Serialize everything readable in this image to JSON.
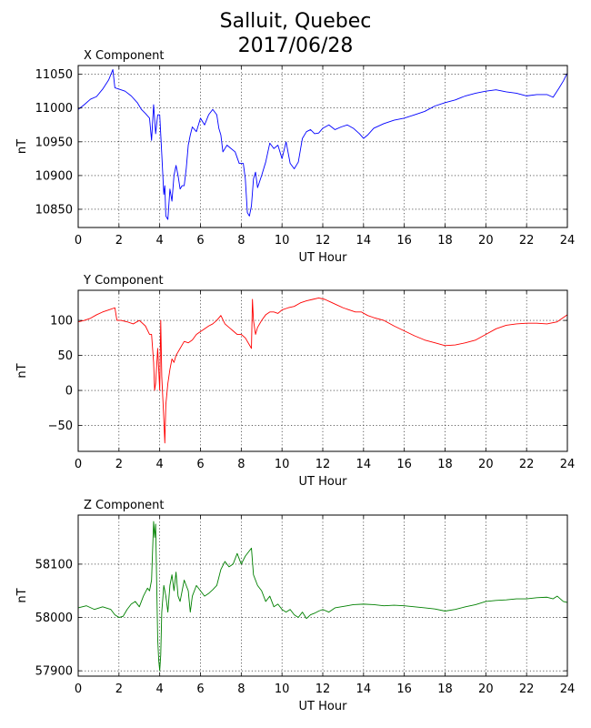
{
  "figure": {
    "title_line1": "Salluit, Quebec",
    "title_line2": "2017/06/28"
  },
  "chart_data": [
    {
      "type": "line",
      "title": "X Component",
      "xlabel": "UT Hour",
      "ylabel": "nT",
      "xlim": [
        0,
        24
      ],
      "ylim": [
        10823,
        11063
      ],
      "xticks": [
        0,
        2,
        4,
        6,
        8,
        10,
        12,
        14,
        16,
        18,
        20,
        22,
        24
      ],
      "yticks": [
        10850,
        10900,
        10950,
        11000,
        11050
      ],
      "grid": true,
      "series": [
        {
          "color": "#0000ff",
          "x": [
            0,
            0.3,
            0.6,
            0.9,
            1.2,
            1.5,
            1.7,
            1.8,
            2.0,
            2.3,
            2.6,
            2.9,
            3.1,
            3.3,
            3.5,
            3.6,
            3.7,
            3.8,
            3.9,
            4.0,
            4.1,
            4.2,
            4.25,
            4.3,
            4.4,
            4.5,
            4.6,
            4.7,
            4.8,
            4.9,
            5.0,
            5.1,
            5.2,
            5.3,
            5.4,
            5.5,
            5.6,
            5.8,
            6.0,
            6.2,
            6.4,
            6.6,
            6.8,
            6.9,
            7.0,
            7.1,
            7.3,
            7.5,
            7.7,
            7.9,
            8.1,
            8.2,
            8.3,
            8.4,
            8.5,
            8.6,
            8.7,
            8.8,
            9.0,
            9.2,
            9.4,
            9.6,
            9.8,
            10.0,
            10.2,
            10.4,
            10.6,
            10.8,
            11.0,
            11.2,
            11.4,
            11.6,
            11.8,
            12.0,
            12.3,
            12.6,
            12.9,
            13.2,
            13.5,
            13.8,
            14.0,
            14.2,
            14.5,
            15.0,
            15.5,
            16.0,
            16.5,
            17.0,
            17.5,
            18.0,
            18.5,
            19.0,
            19.5,
            20.0,
            20.5,
            21.0,
            21.5,
            22.0,
            22.5,
            23.0,
            23.3,
            23.6,
            23.8,
            24.0
          ],
          "values": [
            10998,
            11005,
            11013,
            11017,
            11028,
            11042,
            11057,
            11030,
            11028,
            11025,
            11018,
            11008,
            10998,
            10992,
            10985,
            10952,
            11005,
            10962,
            10990,
            10990,
            10932,
            10872,
            10885,
            10840,
            10835,
            10880,
            10862,
            10900,
            10915,
            10900,
            10880,
            10885,
            10885,
            10910,
            10945,
            10960,
            10972,
            10965,
            10985,
            10975,
            10990,
            10998,
            10990,
            10970,
            10960,
            10935,
            10945,
            10940,
            10935,
            10918,
            10918,
            10895,
            10845,
            10840,
            10855,
            10895,
            10905,
            10882,
            10900,
            10920,
            10948,
            10940,
            10945,
            10925,
            10950,
            10918,
            10910,
            10920,
            10955,
            10965,
            10968,
            10962,
            10963,
            10970,
            10975,
            10968,
            10972,
            10975,
            10970,
            10962,
            10955,
            10960,
            10970,
            10977,
            10982,
            10985,
            10990,
            10995,
            11003,
            11008,
            11012,
            11018,
            11022,
            11025,
            11027,
            11024,
            11022,
            11018,
            11020,
            11020,
            11016,
            11030,
            11040,
            11052
          ]
        }
      ]
    },
    {
      "type": "line",
      "title": "Y Component",
      "xlabel": "UT Hour",
      "ylabel": "nT",
      "xlim": [
        0,
        24
      ],
      "ylim": [
        -87,
        143
      ],
      "xticks": [
        0,
        2,
        4,
        6,
        8,
        10,
        12,
        14,
        16,
        18,
        20,
        22,
        24
      ],
      "yticks": [
        -50,
        0,
        50,
        100
      ],
      "grid": true,
      "series": [
        {
          "color": "#ff0000",
          "x": [
            0,
            0.3,
            0.6,
            0.9,
            1.2,
            1.5,
            1.8,
            1.9,
            2.1,
            2.4,
            2.7,
            3.0,
            3.3,
            3.5,
            3.6,
            3.7,
            3.75,
            3.8,
            3.9,
            4.0,
            4.05,
            4.1,
            4.2,
            4.25,
            4.3,
            4.4,
            4.5,
            4.6,
            4.7,
            4.8,
            5.0,
            5.2,
            5.4,
            5.6,
            5.8,
            6.0,
            6.2,
            6.4,
            6.6,
            6.8,
            7.0,
            7.2,
            7.4,
            7.6,
            7.8,
            8.0,
            8.2,
            8.4,
            8.5,
            8.55,
            8.6,
            8.7,
            8.8,
            9.0,
            9.2,
            9.4,
            9.6,
            9.8,
            10.0,
            10.3,
            10.6,
            10.9,
            11.2,
            11.5,
            11.8,
            12.1,
            12.4,
            12.7,
            13.0,
            13.3,
            13.6,
            13.9,
            14.2,
            14.5,
            15.0,
            15.5,
            16.0,
            16.5,
            17.0,
            17.5,
            18.0,
            18.5,
            19.0,
            19.5,
            20.0,
            20.5,
            21.0,
            21.5,
            22.0,
            22.5,
            23.0,
            23.5,
            24.0
          ],
          "values": [
            98,
            100,
            103,
            108,
            112,
            115,
            118,
            100,
            100,
            98,
            95,
            100,
            92,
            80,
            80,
            40,
            0,
            10,
            60,
            0,
            100,
            20,
            -40,
            -75,
            -20,
            10,
            30,
            45,
            40,
            50,
            60,
            70,
            68,
            72,
            80,
            84,
            88,
            92,
            95,
            100,
            107,
            95,
            90,
            85,
            80,
            80,
            75,
            65,
            60,
            130,
            100,
            80,
            90,
            100,
            108,
            112,
            112,
            110,
            115,
            118,
            120,
            125,
            128,
            130,
            132,
            130,
            126,
            122,
            118,
            115,
            112,
            112,
            107,
            104,
            100,
            92,
            85,
            78,
            72,
            68,
            64,
            65,
            68,
            72,
            80,
            88,
            93,
            95,
            96,
            96,
            95,
            98,
            108
          ]
        }
      ]
    },
    {
      "type": "line",
      "title": "Z Component",
      "xlabel": "UT Hour",
      "ylabel": "nT",
      "xlim": [
        0,
        24
      ],
      "ylim": [
        57890,
        58192
      ],
      "xticks": [
        0,
        2,
        4,
        6,
        8,
        10,
        12,
        14,
        16,
        18,
        20,
        22,
        24
      ],
      "yticks": [
        57900,
        58000,
        58100
      ],
      "grid": true,
      "series": [
        {
          "color": "#008000",
          "x": [
            0,
            0.4,
            0.8,
            1.2,
            1.6,
            1.8,
            2.0,
            2.2,
            2.4,
            2.6,
            2.8,
            3.0,
            3.2,
            3.4,
            3.5,
            3.6,
            3.7,
            3.75,
            3.8,
            3.9,
            3.95,
            4.0,
            4.05,
            4.1,
            4.2,
            4.3,
            4.4,
            4.5,
            4.6,
            4.7,
            4.8,
            4.9,
            5.0,
            5.2,
            5.4,
            5.5,
            5.6,
            5.8,
            6.0,
            6.2,
            6.4,
            6.6,
            6.8,
            7.0,
            7.2,
            7.4,
            7.6,
            7.8,
            8.0,
            8.2,
            8.4,
            8.5,
            8.6,
            8.8,
            9.0,
            9.2,
            9.4,
            9.6,
            9.8,
            10.0,
            10.2,
            10.4,
            10.6,
            10.8,
            11.0,
            11.2,
            11.4,
            11.6,
            11.8,
            12.0,
            12.3,
            12.6,
            12.9,
            13.2,
            13.5,
            14.0,
            14.5,
            15.0,
            15.5,
            16.0,
            16.5,
            17.0,
            17.5,
            18.0,
            18.5,
            19.0,
            19.5,
            20.0,
            20.5,
            21.0,
            21.5,
            22.0,
            22.5,
            23.0,
            23.3,
            23.5,
            23.8,
            24.0
          ],
          "values": [
            58018,
            58022,
            58015,
            58020,
            58015,
            58005,
            58000,
            58002,
            58015,
            58025,
            58030,
            58020,
            58040,
            58055,
            58050,
            58070,
            58180,
            58150,
            58175,
            57960,
            57920,
            57900,
            57930,
            58010,
            58060,
            58040,
            58010,
            58060,
            58080,
            58050,
            58085,
            58040,
            58030,
            58070,
            58050,
            58010,
            58040,
            58060,
            58050,
            58040,
            58045,
            58052,
            58060,
            58090,
            58105,
            58095,
            58100,
            58120,
            58100,
            58115,
            58125,
            58130,
            58080,
            58060,
            58050,
            58030,
            58040,
            58020,
            58025,
            58015,
            58010,
            58015,
            58005,
            58000,
            58010,
            57998,
            58005,
            58008,
            58012,
            58015,
            58010,
            58018,
            58020,
            58022,
            58024,
            58025,
            58024,
            58022,
            58023,
            58022,
            58020,
            58018,
            58016,
            58012,
            58015,
            58020,
            58024,
            58030,
            58032,
            58033,
            58035,
            58035,
            58037,
            58038,
            58035,
            58040,
            58030,
            58028
          ]
        }
      ]
    }
  ]
}
